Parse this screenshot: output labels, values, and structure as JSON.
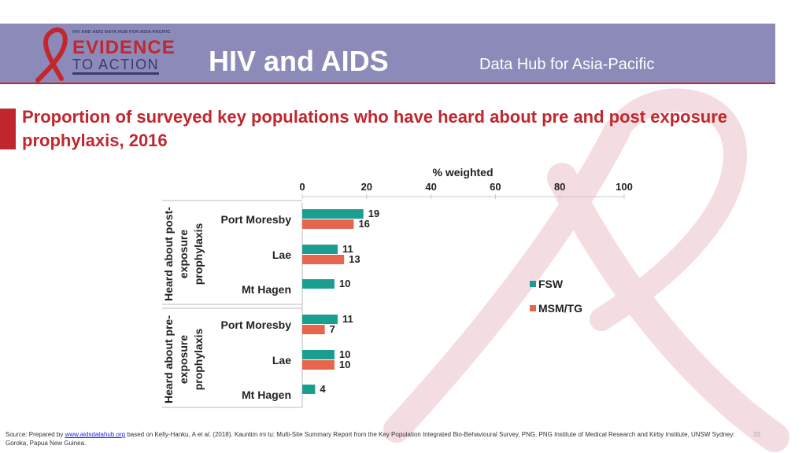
{
  "header": {
    "logo_small": "HIV AND AIDS DATA HUB FOR ASIA-PACIFIC",
    "logo_evidence": "EVIDENCE",
    "logo_action": "TO ACTION",
    "title": "HIV and AIDS",
    "subtitle": "Data Hub for Asia-Pacific"
  },
  "slide": {
    "title": "Proportion of surveyed key populations who have heard about pre and post exposure prophylaxis, 2016"
  },
  "colors": {
    "header": "#8b8ab8",
    "accent": "#c1272d",
    "fsw": "#1a9e8f",
    "msm": "#e8654d"
  },
  "chart_data": {
    "type": "bar",
    "orientation": "horizontal",
    "title": "",
    "xlabel": "% weighted",
    "xlim": [
      0,
      100
    ],
    "xticks": [
      "0",
      "20",
      "40",
      "60",
      "80",
      "100"
    ],
    "groups": [
      {
        "label": "Heard about post-exposure prophylaxis",
        "label_lines": [
          "Heard about post-",
          "exposure",
          "prophylaxis"
        ],
        "categories": [
          "Port Moresby",
          "Lae",
          "Mt Hagen"
        ]
      },
      {
        "label": "Heard about pre-exposure prophylaxis",
        "label_lines": [
          "Heard about pre-",
          "exposure",
          "prophylaxis"
        ],
        "categories": [
          "Port Moresby",
          "Lae",
          "Mt Hagen"
        ]
      }
    ],
    "series": [
      {
        "name": "FSW",
        "values": [
          19,
          11,
          10,
          11,
          10,
          4
        ]
      },
      {
        "name": "MSM/TG",
        "values": [
          16,
          13,
          null,
          7,
          10,
          null
        ]
      }
    ],
    "legend_position": "right"
  },
  "footer": {
    "source_prefix": "Source: Prepared by ",
    "source_link": "www.aidsdatahub.org",
    "source_rest": " based on Kelly-Hanku, A et al. (2018). Kauntim mi tu: Multi-Site Summary Report from the Key Population Integrated Bio-Behavioural Survey, PNG. PNG Institute of Medical Research and Kirby Institute, UNSW Sydney: Goroka, Papua New Guinea.",
    "page_number": "33"
  }
}
